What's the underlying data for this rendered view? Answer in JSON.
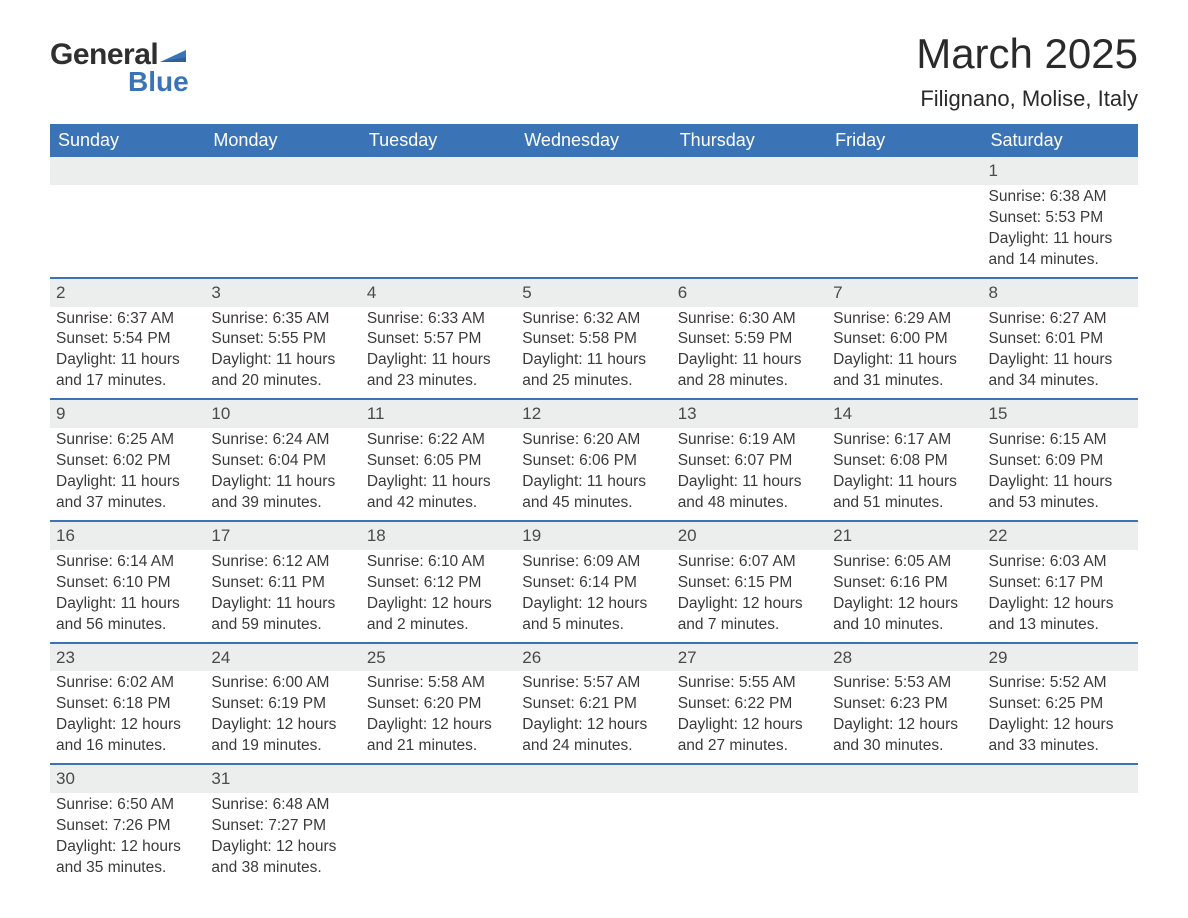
{
  "logo": {
    "text1": "General",
    "text2": "Blue",
    "flag_color": "#3a74b6"
  },
  "title": "March 2025",
  "location": "Filignano, Molise, Italy",
  "header_bg": "#3a74b6",
  "daynum_bg": "#eceded",
  "row_divider": "#3a74b6",
  "text_color": "#3a3a3a",
  "columns": [
    "Sunday",
    "Monday",
    "Tuesday",
    "Wednesday",
    "Thursday",
    "Friday",
    "Saturday"
  ],
  "weeks": [
    [
      null,
      null,
      null,
      null,
      null,
      null,
      {
        "d": "1",
        "sr": "Sunrise: 6:38 AM",
        "ss": "Sunset: 5:53 PM",
        "dl1": "Daylight: 11 hours",
        "dl2": "and 14 minutes."
      }
    ],
    [
      {
        "d": "2",
        "sr": "Sunrise: 6:37 AM",
        "ss": "Sunset: 5:54 PM",
        "dl1": "Daylight: 11 hours",
        "dl2": "and 17 minutes."
      },
      {
        "d": "3",
        "sr": "Sunrise: 6:35 AM",
        "ss": "Sunset: 5:55 PM",
        "dl1": "Daylight: 11 hours",
        "dl2": "and 20 minutes."
      },
      {
        "d": "4",
        "sr": "Sunrise: 6:33 AM",
        "ss": "Sunset: 5:57 PM",
        "dl1": "Daylight: 11 hours",
        "dl2": "and 23 minutes."
      },
      {
        "d": "5",
        "sr": "Sunrise: 6:32 AM",
        "ss": "Sunset: 5:58 PM",
        "dl1": "Daylight: 11 hours",
        "dl2": "and 25 minutes."
      },
      {
        "d": "6",
        "sr": "Sunrise: 6:30 AM",
        "ss": "Sunset: 5:59 PM",
        "dl1": "Daylight: 11 hours",
        "dl2": "and 28 minutes."
      },
      {
        "d": "7",
        "sr": "Sunrise: 6:29 AM",
        "ss": "Sunset: 6:00 PM",
        "dl1": "Daylight: 11 hours",
        "dl2": "and 31 minutes."
      },
      {
        "d": "8",
        "sr": "Sunrise: 6:27 AM",
        "ss": "Sunset: 6:01 PM",
        "dl1": "Daylight: 11 hours",
        "dl2": "and 34 minutes."
      }
    ],
    [
      {
        "d": "9",
        "sr": "Sunrise: 6:25 AM",
        "ss": "Sunset: 6:02 PM",
        "dl1": "Daylight: 11 hours",
        "dl2": "and 37 minutes."
      },
      {
        "d": "10",
        "sr": "Sunrise: 6:24 AM",
        "ss": "Sunset: 6:04 PM",
        "dl1": "Daylight: 11 hours",
        "dl2": "and 39 minutes."
      },
      {
        "d": "11",
        "sr": "Sunrise: 6:22 AM",
        "ss": "Sunset: 6:05 PM",
        "dl1": "Daylight: 11 hours",
        "dl2": "and 42 minutes."
      },
      {
        "d": "12",
        "sr": "Sunrise: 6:20 AM",
        "ss": "Sunset: 6:06 PM",
        "dl1": "Daylight: 11 hours",
        "dl2": "and 45 minutes."
      },
      {
        "d": "13",
        "sr": "Sunrise: 6:19 AM",
        "ss": "Sunset: 6:07 PM",
        "dl1": "Daylight: 11 hours",
        "dl2": "and 48 minutes."
      },
      {
        "d": "14",
        "sr": "Sunrise: 6:17 AM",
        "ss": "Sunset: 6:08 PM",
        "dl1": "Daylight: 11 hours",
        "dl2": "and 51 minutes."
      },
      {
        "d": "15",
        "sr": "Sunrise: 6:15 AM",
        "ss": "Sunset: 6:09 PM",
        "dl1": "Daylight: 11 hours",
        "dl2": "and 53 minutes."
      }
    ],
    [
      {
        "d": "16",
        "sr": "Sunrise: 6:14 AM",
        "ss": "Sunset: 6:10 PM",
        "dl1": "Daylight: 11 hours",
        "dl2": "and 56 minutes."
      },
      {
        "d": "17",
        "sr": "Sunrise: 6:12 AM",
        "ss": "Sunset: 6:11 PM",
        "dl1": "Daylight: 11 hours",
        "dl2": "and 59 minutes."
      },
      {
        "d": "18",
        "sr": "Sunrise: 6:10 AM",
        "ss": "Sunset: 6:12 PM",
        "dl1": "Daylight: 12 hours",
        "dl2": "and 2 minutes."
      },
      {
        "d": "19",
        "sr": "Sunrise: 6:09 AM",
        "ss": "Sunset: 6:14 PM",
        "dl1": "Daylight: 12 hours",
        "dl2": "and 5 minutes."
      },
      {
        "d": "20",
        "sr": "Sunrise: 6:07 AM",
        "ss": "Sunset: 6:15 PM",
        "dl1": "Daylight: 12 hours",
        "dl2": "and 7 minutes."
      },
      {
        "d": "21",
        "sr": "Sunrise: 6:05 AM",
        "ss": "Sunset: 6:16 PM",
        "dl1": "Daylight: 12 hours",
        "dl2": "and 10 minutes."
      },
      {
        "d": "22",
        "sr": "Sunrise: 6:03 AM",
        "ss": "Sunset: 6:17 PM",
        "dl1": "Daylight: 12 hours",
        "dl2": "and 13 minutes."
      }
    ],
    [
      {
        "d": "23",
        "sr": "Sunrise: 6:02 AM",
        "ss": "Sunset: 6:18 PM",
        "dl1": "Daylight: 12 hours",
        "dl2": "and 16 minutes."
      },
      {
        "d": "24",
        "sr": "Sunrise: 6:00 AM",
        "ss": "Sunset: 6:19 PM",
        "dl1": "Daylight: 12 hours",
        "dl2": "and 19 minutes."
      },
      {
        "d": "25",
        "sr": "Sunrise: 5:58 AM",
        "ss": "Sunset: 6:20 PM",
        "dl1": "Daylight: 12 hours",
        "dl2": "and 21 minutes."
      },
      {
        "d": "26",
        "sr": "Sunrise: 5:57 AM",
        "ss": "Sunset: 6:21 PM",
        "dl1": "Daylight: 12 hours",
        "dl2": "and 24 minutes."
      },
      {
        "d": "27",
        "sr": "Sunrise: 5:55 AM",
        "ss": "Sunset: 6:22 PM",
        "dl1": "Daylight: 12 hours",
        "dl2": "and 27 minutes."
      },
      {
        "d": "28",
        "sr": "Sunrise: 5:53 AM",
        "ss": "Sunset: 6:23 PM",
        "dl1": "Daylight: 12 hours",
        "dl2": "and 30 minutes."
      },
      {
        "d": "29",
        "sr": "Sunrise: 5:52 AM",
        "ss": "Sunset: 6:25 PM",
        "dl1": "Daylight: 12 hours",
        "dl2": "and 33 minutes."
      }
    ],
    [
      {
        "d": "30",
        "sr": "Sunrise: 6:50 AM",
        "ss": "Sunset: 7:26 PM",
        "dl1": "Daylight: 12 hours",
        "dl2": "and 35 minutes."
      },
      {
        "d": "31",
        "sr": "Sunrise: 6:48 AM",
        "ss": "Sunset: 7:27 PM",
        "dl1": "Daylight: 12 hours",
        "dl2": "and 38 minutes."
      },
      null,
      null,
      null,
      null,
      null
    ]
  ]
}
